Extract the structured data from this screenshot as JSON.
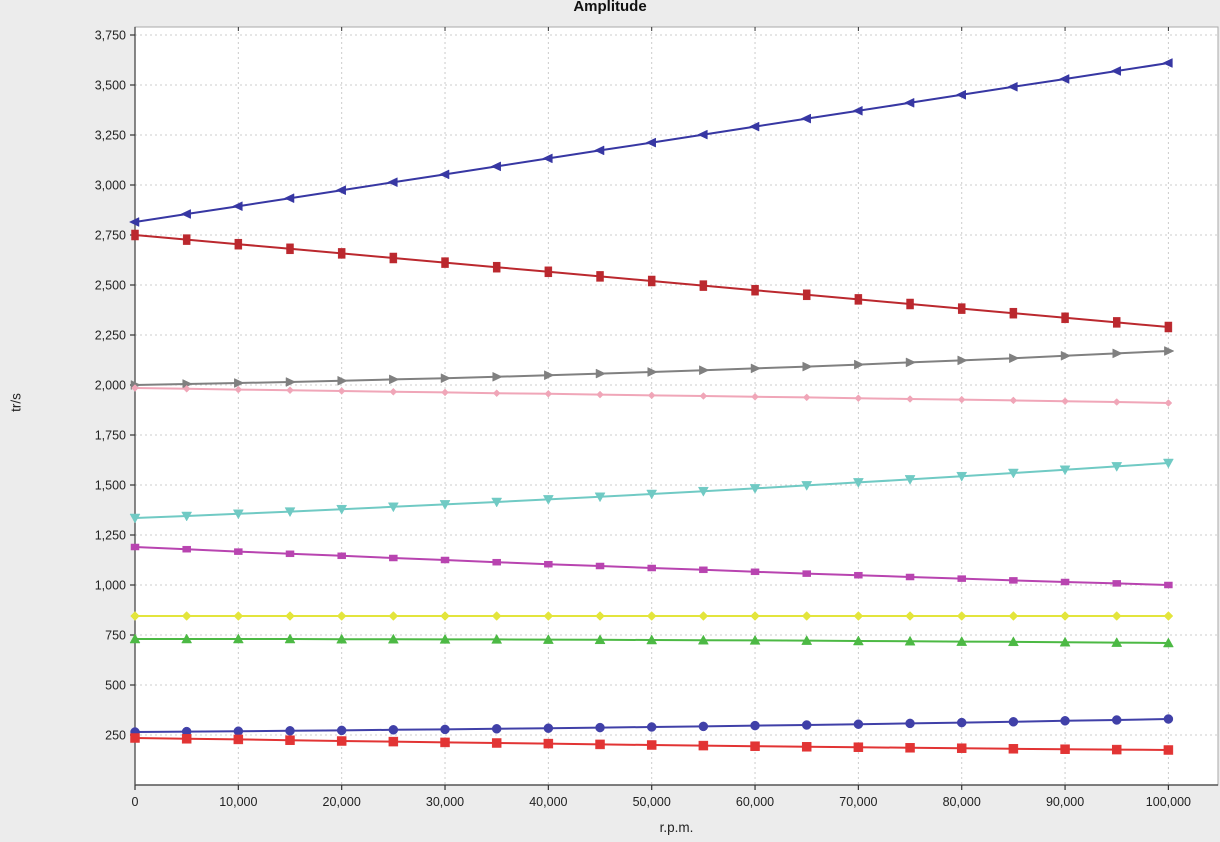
{
  "chart_data": {
    "type": "line",
    "title": "Amplitude",
    "xlabel": "r.p.m.",
    "ylabel": "tr/s",
    "x": [
      0,
      5000,
      10000,
      15000,
      20000,
      25000,
      30000,
      35000,
      40000,
      45000,
      50000,
      55000,
      60000,
      65000,
      70000,
      75000,
      80000,
      85000,
      90000,
      95000,
      100000
    ],
    "xlim": [
      0,
      104800
    ],
    "ylim": [
      0,
      3790
    ],
    "x_ticks": [
      0,
      10000,
      20000,
      30000,
      40000,
      50000,
      60000,
      70000,
      80000,
      90000,
      100000
    ],
    "y_ticks": [
      250,
      500,
      750,
      1000,
      1250,
      1500,
      1750,
      2000,
      2250,
      2500,
      2750,
      3000,
      3250,
      3500,
      3750
    ],
    "grid": true,
    "legend": "none",
    "background": "#ececec",
    "plot_background": "#ffffff",
    "gridline_color": "#cccccc",
    "border_color": "#aaaaaa",
    "axis_color": "#555555",
    "tick_color": "#333333",
    "tick_label_color": "#222222",
    "series": [
      {
        "name": "navy-left-triangle",
        "color": "#3737a3",
        "marker": "triangle-left",
        "values": [
          2815,
          2855,
          2894,
          2934,
          2974,
          3014,
          3053,
          3093,
          3133,
          3173,
          3212,
          3252,
          3292,
          3332,
          3371,
          3411,
          3451,
          3491,
          3530,
          3570,
          3610
        ]
      },
      {
        "name": "darkred-square",
        "color": "#bb282e",
        "marker": "square-tall",
        "values": [
          2750,
          2727,
          2704,
          2681,
          2658,
          2635,
          2612,
          2589,
          2566,
          2543,
          2520,
          2497,
          2474,
          2451,
          2428,
          2405,
          2382,
          2359,
          2336,
          2313,
          2290
        ]
      },
      {
        "name": "gray-right-triangle",
        "color": "#808080",
        "marker": "triangle-right",
        "values": [
          2000,
          2005,
          2010,
          2015,
          2021,
          2028,
          2034,
          2041,
          2049,
          2057,
          2065,
          2074,
          2083,
          2092,
          2102,
          2113,
          2123,
          2134,
          2146,
          2158,
          2170
        ]
      },
      {
        "name": "pink-diamond",
        "color": "#f0a6b8",
        "marker": "diamond-small",
        "values": [
          1985,
          1981,
          1977,
          1974,
          1970,
          1966,
          1963,
          1959,
          1956,
          1952,
          1948,
          1945,
          1941,
          1938,
          1934,
          1930,
          1927,
          1923,
          1919,
          1915,
          1910
        ]
      },
      {
        "name": "cyan-down-triangle",
        "color": "#70cac4",
        "marker": "triangle-down",
        "values": [
          1335,
          1345,
          1356,
          1367,
          1379,
          1391,
          1403,
          1415,
          1428,
          1441,
          1455,
          1469,
          1483,
          1498,
          1513,
          1528,
          1544,
          1560,
          1576,
          1593,
          1610
        ]
      },
      {
        "name": "magenta-square",
        "color": "#b844b0",
        "marker": "square-small",
        "values": [
          1190,
          1179,
          1167,
          1156,
          1146,
          1135,
          1125,
          1114,
          1104,
          1095,
          1085,
          1076,
          1066,
          1057,
          1049,
          1040,
          1032,
          1023,
          1015,
          1008,
          1000
        ]
      },
      {
        "name": "yellow-diamond",
        "color": "#e3e53c",
        "marker": "diamond",
        "values": [
          845,
          845,
          845,
          845,
          845,
          845,
          845,
          845,
          845,
          845,
          845,
          845,
          845,
          845,
          845,
          845,
          845,
          845,
          845,
          845,
          845
        ]
      },
      {
        "name": "green-up-triangle",
        "color": "#4cb944",
        "marker": "triangle-up",
        "values": [
          730,
          730,
          730,
          730,
          729,
          729,
          728,
          728,
          727,
          726,
          725,
          724,
          723,
          722,
          720,
          719,
          717,
          716,
          714,
          712,
          710
        ]
      },
      {
        "name": "blue-circle",
        "color": "#4040a8",
        "marker": "circle",
        "values": [
          265,
          267,
          269,
          271,
          273,
          276,
          278,
          281,
          284,
          287,
          290,
          293,
          297,
          300,
          304,
          308,
          312,
          316,
          321,
          325,
          330
        ]
      },
      {
        "name": "red-square",
        "color": "#e23434",
        "marker": "square",
        "values": [
          235,
          231,
          228,
          224,
          220,
          217,
          213,
          210,
          207,
          203,
          200,
          197,
          194,
          191,
          189,
          186,
          184,
          181,
          179,
          177,
          175
        ]
      }
    ]
  }
}
